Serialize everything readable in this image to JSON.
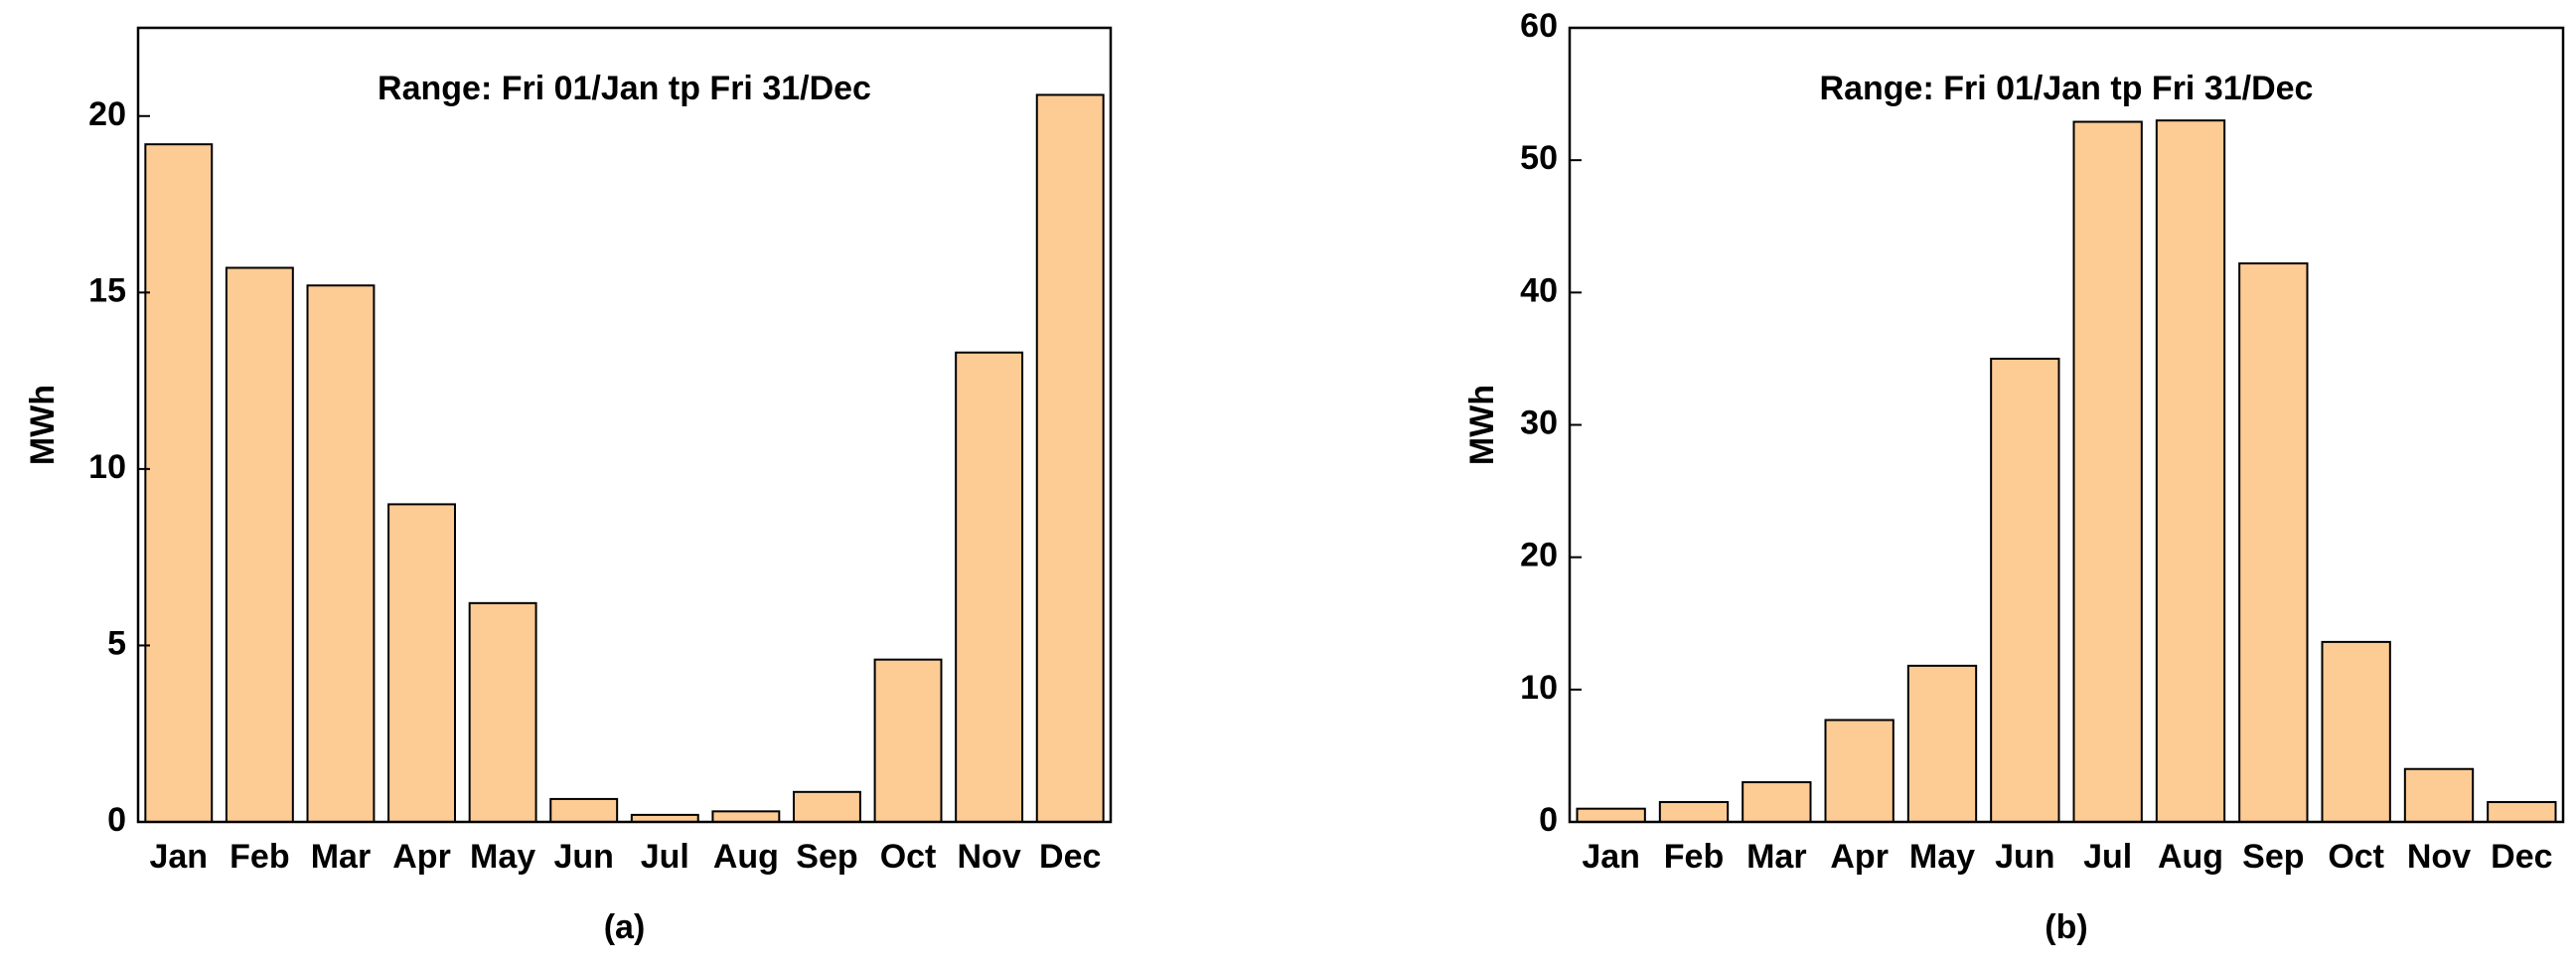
{
  "chart_data": [
    {
      "type": "bar",
      "title": "Range: Fri 01/Jan tp Fri 31/Dec",
      "ylabel": "MWh",
      "caption": "(a)",
      "categories": [
        "Jan",
        "Feb",
        "Mar",
        "Apr",
        "May",
        "Jun",
        "Jul",
        "Aug",
        "Sep",
        "Oct",
        "Nov",
        "Dec"
      ],
      "values": [
        19.2,
        15.7,
        15.2,
        9.0,
        6.2,
        0.65,
        0.2,
        0.3,
        0.85,
        4.6,
        13.3,
        20.6
      ],
      "color": "#fdcb94",
      "ylim": [
        0,
        22.5
      ],
      "yticks": [
        0,
        5,
        10,
        15,
        20
      ]
    },
    {
      "type": "bar",
      "title": "Range: Fri 01/Jan tp Fri 31/Dec",
      "ylabel": "MWh",
      "caption": "(b)",
      "categories": [
        "Jan",
        "Feb",
        "Mar",
        "Apr",
        "May",
        "Jun",
        "Jul",
        "Aug",
        "Sep",
        "Oct",
        "Nov",
        "Dec"
      ],
      "values": [
        1.0,
        1.5,
        3.0,
        7.7,
        11.8,
        35.0,
        52.9,
        53.0,
        42.2,
        13.6,
        4.0,
        1.5
      ],
      "color": "#fdcb94",
      "ylim": [
        0,
        60
      ],
      "yticks": [
        0,
        10,
        20,
        30,
        40,
        50,
        60
      ]
    }
  ]
}
